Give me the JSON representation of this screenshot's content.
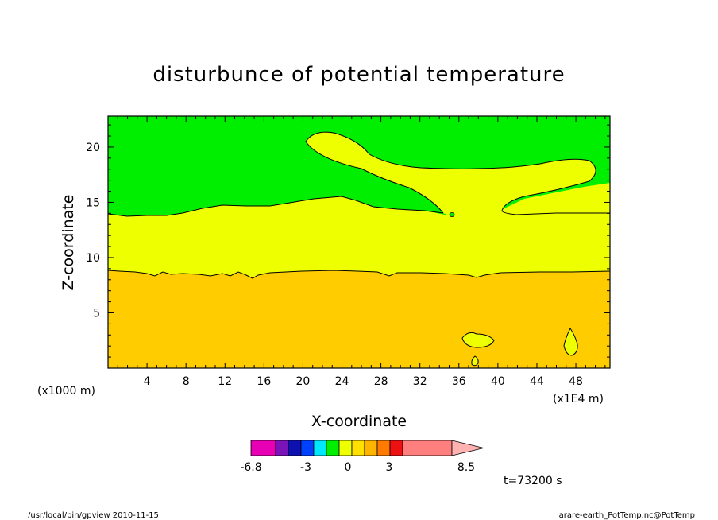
{
  "chart_data": {
    "type": "contour",
    "title": "disturbunce of potential temperature",
    "xlabel": "X-coordinate",
    "ylabel": "Z-coordinate",
    "x_unit_left": "(x1000 m)",
    "x_unit_right": "(x1E4 m)",
    "xlim": [
      0,
      51.5
    ],
    "ylim": [
      0,
      22.8
    ],
    "x_ticks": [
      4,
      8,
      12,
      16,
      20,
      24,
      28,
      32,
      36,
      40,
      44,
      48
    ],
    "y_ticks": [
      5,
      10,
      15,
      20
    ],
    "colors": {
      "below_0_green": "#00ee00",
      "band_0_3_yellow": "#eeff00",
      "band_3_6_orange": "#ffcc00"
    },
    "colorbar": {
      "colors": [
        "#e800b4",
        "#7a14b8",
        "#1010b0",
        "#0040ff",
        "#00e8ff",
        "#00ee00",
        "#eeff00",
        "#ffe000",
        "#ffb400",
        "#ff7a00",
        "#ee1111",
        "#ff7f7f",
        "#ffb2b2"
      ],
      "labels": [
        "-6.8",
        "-3",
        "0",
        "3",
        "8.5"
      ]
    },
    "time_label": "t=73200 s"
  },
  "footer": {
    "left": "/usr/local/bin/gpview  2010-11-15",
    "right": "arare-earth_PotTemp.nc@PotTemp"
  }
}
